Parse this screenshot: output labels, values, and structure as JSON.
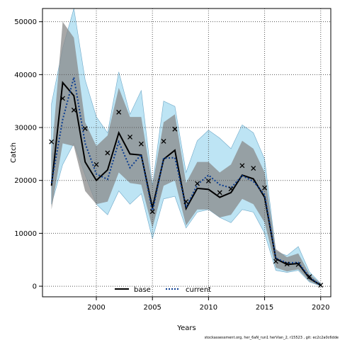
{
  "chart_data": {
    "type": "line",
    "title": "",
    "xlabel": "Years",
    "ylabel": "Catch",
    "xlim": [
      1995.2,
      2020.9
    ],
    "ylim": [
      -2000,
      52500
    ],
    "grid": true,
    "legend_placement": "bottom-center",
    "x_ticks": [
      2000,
      2005,
      2010,
      2015,
      2020
    ],
    "y_ticks": [
      0,
      10000,
      20000,
      30000,
      40000,
      50000
    ],
    "x_tick_labels": [
      "2000",
      "2005",
      "2010",
      "2015",
      "2020"
    ],
    "y_tick_labels": [
      "0",
      "10000",
      "20000",
      "30000",
      "40000",
      "50000"
    ],
    "x": [
      1996,
      1997,
      1998,
      1999,
      2000,
      2001,
      2002,
      2003,
      2004,
      2005,
      2006,
      2007,
      2008,
      2009,
      2010,
      2011,
      2012,
      2013,
      2014,
      2015,
      2016,
      2017,
      2018,
      2019,
      2020
    ],
    "series": [
      {
        "name": "base",
        "style": "solid",
        "color": "#000000",
        "band_color": "#8a8a8a",
        "values": [
          19000,
          38500,
          36000,
          23500,
          20000,
          22000,
          29000,
          25000,
          24800,
          14800,
          24000,
          25700,
          14700,
          18500,
          18300,
          16800,
          17700,
          21000,
          20300,
          16800,
          5200,
          4100,
          4300,
          1500,
          200
        ],
        "lower": [
          14500,
          27000,
          26500,
          18000,
          15500,
          16000,
          21500,
          19500,
          19200,
          11000,
          19000,
          20000,
          11500,
          14500,
          14500,
          13000,
          13500,
          16500,
          15500,
          12000,
          3500,
          2800,
          3200,
          900,
          50
        ],
        "upper": [
          24500,
          50000,
          47000,
          31000,
          26500,
          28500,
          37500,
          32000,
          32000,
          19000,
          31000,
          32500,
          19500,
          23500,
          23500,
          21500,
          23000,
          27500,
          26000,
          21500,
          7000,
          5500,
          6200,
          2300,
          500
        ]
      },
      {
        "name": "current",
        "style": "dotted",
        "color": "#0b3d91",
        "band_color": "#87ceeb",
        "values": [
          19500,
          31500,
          39500,
          27000,
          21200,
          20200,
          27300,
          22400,
          24900,
          14000,
          24200,
          24300,
          14900,
          19200,
          21000,
          19200,
          18600,
          20900,
          19800,
          17300,
          5300,
          4400,
          4500,
          1700,
          200
        ],
        "lower": [
          15500,
          23000,
          27000,
          21000,
          15500,
          13500,
          18000,
          15500,
          17500,
          9000,
          16500,
          17000,
          11000,
          14000,
          14500,
          13000,
          12000,
          14500,
          14000,
          10000,
          3000,
          2600,
          3000,
          800,
          50
        ],
        "upper": [
          34500,
          45000,
          55000,
          39000,
          32000,
          29000,
          40500,
          32500,
          37000,
          19000,
          35000,
          34000,
          21500,
          27500,
          29500,
          28000,
          26000,
          30500,
          29000,
          24000,
          6500,
          5800,
          7500,
          2700,
          500
        ]
      }
    ],
    "observed": {
      "marker": "x",
      "values": [
        27300,
        35500,
        33300,
        29800,
        23000,
        25200,
        32900,
        28200,
        26900,
        14100,
        27400,
        29700,
        16000,
        19400,
        19900,
        17700,
        18400,
        22800,
        22300,
        18600,
        4700,
        4200,
        4100,
        1800,
        200
      ]
    }
  },
  "footer": "stockassessment.org,  her_6aN_run1  herVian_2,  r15523 ,  git: ec2c2a0c6dde"
}
